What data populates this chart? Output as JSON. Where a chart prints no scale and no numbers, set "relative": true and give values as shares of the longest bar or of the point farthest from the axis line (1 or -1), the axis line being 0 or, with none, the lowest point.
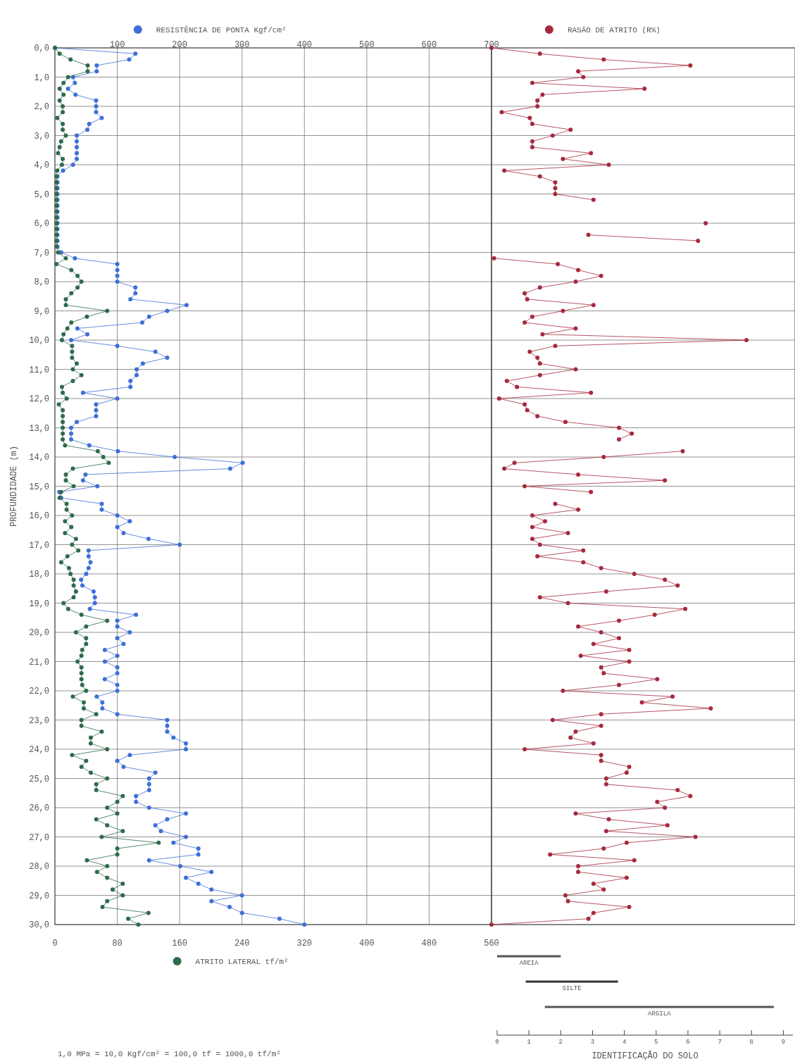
{
  "chart_data": [
    {
      "type": "line",
      "orientation": "horizontal",
      "ylabel": "PROFUNDIDADE (m)",
      "xlim": [
        0,
        560
      ],
      "xticks": [
        0,
        80,
        160,
        240,
        320,
        400,
        480,
        560
      ],
      "x2lim": [
        0,
        700
      ],
      "x2ticks": [
        {
          "value": 0,
          "label": null
        },
        100,
        200,
        300,
        400,
        500,
        600,
        700
      ],
      "ylim": [
        30,
        0
      ],
      "yticks": [
        {
          "value": 0,
          "label": "0,0"
        },
        {
          "value": 1,
          "label": "1,0"
        },
        {
          "value": 2,
          "label": "2,0"
        },
        {
          "value": 3,
          "label": "3,0"
        },
        {
          "value": 4,
          "label": "4,0"
        },
        {
          "value": 5,
          "label": "5,0"
        },
        {
          "value": 6,
          "label": "6,0"
        },
        {
          "value": 7,
          "label": "7,0"
        },
        {
          "value": 8,
          "label": "8,0"
        },
        {
          "value": 9,
          "label": "9,0"
        },
        {
          "value": 10,
          "label": "10,0"
        },
        {
          "value": 11,
          "label": "11,0"
        },
        {
          "value": 12,
          "label": "12,0"
        },
        {
          "value": 13,
          "label": "13,0"
        },
        {
          "value": 14,
          "label": "14,0"
        },
        {
          "value": 15,
          "label": "15,0"
        },
        {
          "value": 16,
          "label": "16,0"
        },
        {
          "value": 17,
          "label": "17,0"
        },
        {
          "value": 18,
          "label": "18,0"
        },
        {
          "value": 19,
          "label": "19,0"
        },
        {
          "value": 20,
          "label": "20,0"
        },
        {
          "value": 21,
          "label": "21,0"
        },
        {
          "value": 22,
          "label": "22,0"
        },
        {
          "value": 23,
          "label": "23,0"
        },
        {
          "value": 24,
          "label": "24,0"
        },
        {
          "value": 25,
          "label": "25,0"
        },
        {
          "value": 26,
          "label": "26,0"
        },
        {
          "value": 27,
          "label": "27,0"
        },
        {
          "value": 28,
          "label": "28,0"
        },
        {
          "value": 29,
          "label": "29,0"
        },
        {
          "value": 30,
          "label": "30,0"
        }
      ],
      "grid": true,
      "marker": "circle",
      "x2label": "RESISTÊNCIA DE PONTA Kgf/cm²",
      "xlabel": "ATRITO LATERAL tf/m²",
      "x": [
        0,
        0.2,
        0.4,
        0.6,
        0.8,
        1,
        1.2,
        1.4,
        1.6,
        1.8,
        2,
        2.2,
        2.4,
        2.6,
        2.8,
        3,
        3.2,
        3.4,
        3.6,
        3.8,
        4,
        4.2,
        4.4,
        4.6,
        4.8,
        5,
        5.2,
        5.4,
        5.6,
        5.8,
        6,
        6.2,
        6.4,
        6.6,
        6.8,
        7,
        7.2,
        7.4,
        7.6,
        7.8,
        8,
        8.2,
        8.4,
        8.6,
        8.8,
        9,
        9.2,
        9.4,
        9.6,
        9.8,
        10,
        10.2,
        10.4,
        10.6,
        10.8,
        11,
        11.2,
        11.4,
        11.6,
        11.8,
        12,
        12.2,
        12.4,
        12.6,
        12.8,
        13,
        13.2,
        13.4,
        13.6,
        13.8,
        14,
        14.2,
        14.4,
        14.6,
        14.8,
        15,
        15.2,
        15.4,
        15.6,
        15.8,
        16,
        16.2,
        16.4,
        16.6,
        16.8,
        17,
        17.2,
        17.4,
        17.6,
        17.8,
        18,
        18.2,
        18.4,
        18.6,
        18.8,
        19,
        19.2,
        19.4,
        19.6,
        19.8,
        20,
        20.2,
        20.4,
        20.6,
        20.8,
        21,
        21.2,
        21.4,
        21.6,
        21.8,
        22,
        22.2,
        22.4,
        22.6,
        22.8,
        23,
        23.2,
        23.4,
        23.6,
        23.8,
        24,
        24.2,
        24.4,
        24.6,
        24.8,
        25,
        25.2,
        25.4,
        25.6,
        25.8,
        26,
        26.2,
        26.4,
        26.6,
        26.8,
        27,
        27.2,
        27.4,
        27.6,
        27.8,
        28,
        28.2,
        28.4,
        28.6,
        28.8,
        29,
        29.2,
        29.4,
        29.6,
        29.8,
        30
      ],
      "series": [
        {
          "color": "#3d6fd6",
          "axis": "x2",
          "values": [
            0,
            129,
            119,
            67,
            67,
            29,
            32,
            21,
            33,
            66,
            66,
            66,
            75,
            55,
            52,
            35,
            35,
            35,
            35,
            35,
            29,
            13,
            4,
            4,
            4,
            4,
            4,
            4,
            4,
            4,
            4,
            4,
            4,
            4,
            4,
            10,
            32,
            100,
            100,
            100,
            100,
            129,
            129,
            121,
            211,
            180,
            151,
            140,
            36,
            52,
            26,
            100,
            161,
            180,
            141,
            131,
            131,
            121,
            121,
            45,
            100,
            66,
            66,
            66,
            35,
            26,
            26,
            26,
            55,
            101,
            192,
            301,
            281,
            49,
            45,
            68,
            7,
            10,
            75,
            75,
            100,
            120,
            100,
            110,
            150,
            200,
            54,
            54,
            57,
            54,
            50,
            42,
            44,
            62,
            64,
            64,
            56,
            130,
            100,
            100,
            120,
            100,
            110,
            80,
            100,
            80,
            100,
            100,
            80,
            100,
            100,
            67,
            76,
            76,
            100,
            180,
            180,
            180,
            190,
            210,
            210,
            120,
            100,
            110,
            161,
            151,
            151,
            151,
            130,
            130,
            151,
            210,
            180,
            161,
            170,
            210,
            190,
            230,
            230,
            151,
            201,
            251,
            210,
            230,
            251,
            300,
            251,
            280,
            300,
            360,
            400
          ]
        },
        {
          "color": "#2f6b4b",
          "values": [
            0,
            6,
            20,
            42,
            42,
            17,
            11,
            6,
            11,
            6,
            10,
            10,
            3,
            10,
            10,
            14,
            8,
            6,
            4,
            10,
            9,
            3,
            2,
            2,
            2,
            2,
            2,
            2,
            2,
            2,
            2,
            2,
            2,
            2,
            2,
            4,
            14,
            2,
            21,
            29,
            34,
            29,
            21,
            14,
            14,
            67,
            41,
            21,
            16,
            11,
            9,
            22,
            22,
            22,
            28,
            23,
            34,
            23,
            9,
            10,
            15,
            5,
            10,
            10,
            10,
            10,
            10,
            10,
            13,
            55,
            62,
            69,
            23,
            14,
            14,
            24,
            8,
            6,
            15,
            15,
            22,
            13,
            21,
            13,
            27,
            22,
            30,
            16,
            8,
            18,
            20,
            24,
            24,
            27,
            24,
            11,
            17,
            34,
            67,
            40,
            27,
            40,
            40,
            35,
            34,
            29,
            34,
            34,
            34,
            35,
            40,
            23,
            37,
            37,
            53,
            34,
            34,
            60,
            46,
            46,
            67,
            22,
            40,
            34,
            46,
            67,
            53,
            53,
            87,
            80,
            67,
            80,
            53,
            67,
            87,
            60,
            133,
            80,
            80,
            41,
            67,
            54,
            67,
            87,
            74,
            87,
            67,
            61,
            120,
            94,
            107
          ]
        }
      ],
      "annotations": [
        "1,0 MPa = 10,0 Kgf/cm² = 100,0 tf = 1000,0 tf/m²"
      ]
    },
    {
      "type": "line",
      "orientation": "horizontal",
      "relative": true,
      "ylim": [
        30,
        0
      ],
      "yticks": [
        0,
        1,
        2,
        3,
        4,
        5,
        6,
        7,
        8,
        9,
        10,
        11,
        12,
        13,
        14,
        15,
        16,
        17,
        18,
        19,
        20,
        21,
        22,
        23,
        24,
        25,
        26,
        27,
        28,
        29,
        30
      ],
      "tick_labels": false,
      "grid": "y",
      "legend": "top",
      "marker": "circle",
      "x": [
        0,
        0.2,
        0.4,
        0.6,
        0.8,
        1,
        1.2,
        1.4,
        1.6,
        1.8,
        2,
        2.2,
        2.4,
        2.6,
        2.8,
        3,
        3.2,
        3.4,
        3.6,
        3.8,
        4,
        4.2,
        4.4,
        4.6,
        4.8,
        5,
        5.2,
        5.4,
        5.6,
        5.8,
        6,
        6.2,
        6.4,
        6.6,
        6.8,
        7,
        7.2,
        7.4,
        7.6,
        7.8,
        8,
        8.2,
        8.4,
        8.6,
        8.8,
        9,
        9.2,
        9.4,
        9.6,
        9.8,
        10,
        10.2,
        10.4,
        10.6,
        10.8,
        11,
        11.2,
        11.4,
        11.6,
        11.8,
        12,
        12.2,
        12.4,
        12.6,
        12.8,
        13,
        13.2,
        13.4,
        13.6,
        13.8,
        14,
        14.2,
        14.4,
        14.6,
        14.8,
        15,
        15.2,
        15.4,
        15.6,
        15.8,
        16,
        16.2,
        16.4,
        16.6,
        16.8,
        17,
        17.2,
        17.4,
        17.6,
        17.8,
        18,
        18.2,
        18.4,
        18.6,
        18.8,
        19,
        19.2,
        19.4,
        19.6,
        19.8,
        20,
        20.2,
        20.4,
        20.6,
        20.8,
        21,
        21.2,
        21.4,
        21.6,
        21.8,
        22,
        22.2,
        22.4,
        22.6,
        22.8,
        23,
        23.2,
        23.4,
        23.6,
        23.8,
        24,
        24.2,
        24.4,
        24.6,
        24.8,
        25,
        25.2,
        25.4,
        25.6,
        25.8,
        26,
        26.2,
        26.4,
        26.6,
        26.8,
        27,
        27.2,
        27.4,
        27.6,
        27.8,
        28,
        28.2,
        28.4,
        28.6,
        28.8,
        29,
        29.2,
        29.4,
        29.6,
        29.8,
        30
      ],
      "series": [
        {
          "name": "RASÃO DE ATRITO (R%)",
          "color": "#a62a3e",
          "values": [
            0,
            0.19,
            0.44,
            0.78,
            0.34,
            0.36,
            0.16,
            0.6,
            0.2,
            0.18,
            0.18,
            0.04,
            0.15,
            0.16,
            0.31,
            0.24,
            0.16,
            0.16,
            0.39,
            0.28,
            0.46,
            0.05,
            0.19,
            0.25,
            0.25,
            0.25,
            0.4,
            null,
            null,
            null,
            0.84,
            null,
            0.38,
            0.81,
            null,
            null,
            0.01,
            0.26,
            0.34,
            0.43,
            0.33,
            0.19,
            0.13,
            0.14,
            0.4,
            0.28,
            0.16,
            0.13,
            0.33,
            0.2,
            1,
            0.25,
            0.15,
            0.18,
            0.19,
            0.33,
            0.19,
            0.06,
            0.1,
            0.39,
            0.03,
            0.13,
            0.14,
            0.18,
            0.29,
            0.5,
            0.55,
            0.5,
            null,
            0.75,
            0.44,
            0.09,
            0.05,
            0.34,
            0.68,
            0.13,
            0.39,
            null,
            0.25,
            0.34,
            0.16,
            0.21,
            0.16,
            0.3,
            0.16,
            0.19,
            0.36,
            0.18,
            0.36,
            0.43,
            0.56,
            0.68,
            0.73,
            0.45,
            0.19,
            0.3,
            0.76,
            0.64,
            0.5,
            0.34,
            0.43,
            0.5,
            0.4,
            0.54,
            0.35,
            0.54,
            0.43,
            0.44,
            0.65,
            0.5,
            0.28,
            0.71,
            0.59,
            0.86,
            0.43,
            0.24,
            0.43,
            0.33,
            0.31,
            0.4,
            0.13,
            0.43,
            0.43,
            0.54,
            0.53,
            0.45,
            0.45,
            0.73,
            0.78,
            0.65,
            0.68,
            0.33,
            0.46,
            0.69,
            0.45,
            0.8,
            0.53,
            0.44,
            0.23,
            0.56,
            0.34,
            0.34,
            0.53,
            0.4,
            0.44,
            0.29,
            0.3,
            0.54,
            0.4,
            0.38,
            0
          ]
        }
      ]
    },
    {
      "type": "bar",
      "orientation": "horizontal",
      "categories": [
        "AREIA",
        "SILTE",
        "ARGILA"
      ],
      "base": [
        0,
        0.9,
        1.5
      ],
      "values": [
        2,
        2.9,
        7.2
      ],
      "colors": [
        "#555555",
        "#333333",
        "#555555"
      ],
      "xlim": [
        0,
        9.3
      ],
      "xticks": [
        0,
        1,
        2,
        3,
        4,
        5,
        6,
        7,
        8,
        9
      ],
      "xlabel": "IDENTIFICAÇÃO DO SOLO"
    }
  ]
}
